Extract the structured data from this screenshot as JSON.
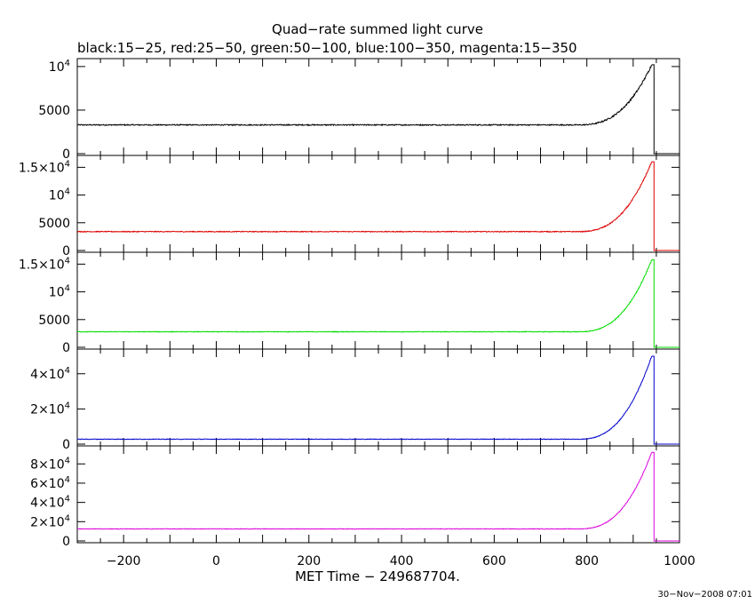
{
  "chart_data": {
    "type": "line",
    "title": "Quad−rate summed light curve",
    "subtitle": "black:15−25, red:25−50, green:50−100, blue:100−350, magenta:15−350",
    "xlabel": "MET Time − 249687704.",
    "xlim": [
      -300,
      1000
    ],
    "xticks": [
      -200,
      0,
      200,
      400,
      600,
      800,
      1000
    ],
    "xticklabels": [
      "−200",
      "0",
      "200",
      "400",
      "600",
      "800",
      "1000"
    ],
    "timestamp": "30−Nov−2008 07:01",
    "shape": {
      "start_time": -300,
      "rise_start": 780,
      "peak_time": 940,
      "end_time": 945,
      "gap_end": 1000
    },
    "panels": [
      {
        "name": "15-25 keV",
        "color": "#000000",
        "ylim": [
          0,
          10500
        ],
        "baseline": 3300,
        "peak": 10200,
        "noise": 60,
        "yticks": [
          {
            "value": 0,
            "label": "0"
          },
          {
            "value": 5000,
            "label": "5000"
          },
          {
            "value": 10000,
            "label": "10",
            "exp": "4"
          }
        ]
      },
      {
        "name": "25-50 keV",
        "color": "#dd0000",
        "ylim": [
          0,
          16500
        ],
        "baseline": 3400,
        "peak": 16000,
        "noise": 70,
        "yticks": [
          {
            "value": 0,
            "label": "0"
          },
          {
            "value": 5000,
            "label": "5000"
          },
          {
            "value": 10000,
            "label": "10",
            "exp": "4"
          },
          {
            "value": 15000,
            "label": "1.5×10",
            "exp": "4"
          }
        ]
      },
      {
        "name": "50-100 keV",
        "color": "#00dd00",
        "ylim": [
          0,
          16500
        ],
        "baseline": 2800,
        "peak": 15800,
        "noise": 60,
        "yticks": [
          {
            "value": 0,
            "label": "0"
          },
          {
            "value": 5000,
            "label": "5000"
          },
          {
            "value": 10000,
            "label": "10",
            "exp": "4"
          },
          {
            "value": 15000,
            "label": "1.5×10",
            "exp": "4"
          }
        ]
      },
      {
        "name": "100-350 keV",
        "color": "#0000cc",
        "ylim": [
          0,
          52000
        ],
        "baseline": 2800,
        "peak": 50000,
        "noise": 150,
        "yticks": [
          {
            "value": 0,
            "label": "0"
          },
          {
            "value": 20000,
            "label": "2×10",
            "exp": "4"
          },
          {
            "value": 40000,
            "label": "4×10",
            "exp": "4"
          }
        ]
      },
      {
        "name": "15-350 keV",
        "color": "#dd00dd",
        "ylim": [
          0,
          95000
        ],
        "baseline": 12500,
        "peak": 92000,
        "noise": 250,
        "yticks": [
          {
            "value": 0,
            "label": "0"
          },
          {
            "value": 20000,
            "label": "2×10",
            "exp": "4"
          },
          {
            "value": 40000,
            "label": "4×10",
            "exp": "4"
          },
          {
            "value": 60000,
            "label": "6×10",
            "exp": "4"
          },
          {
            "value": 80000,
            "label": "8×10",
            "exp": "4"
          }
        ]
      }
    ]
  }
}
